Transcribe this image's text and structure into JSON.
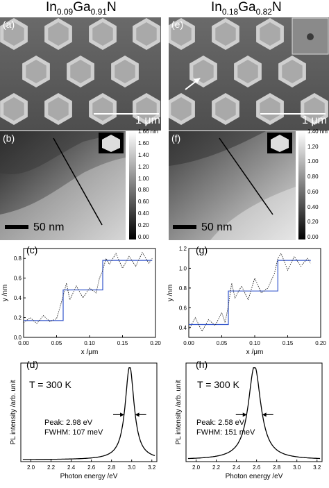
{
  "columns": [
    {
      "title_main": "In",
      "title_sub1": "0.09",
      "title_mid": "Ga",
      "title_sub2": "0.91",
      "title_end": "N"
    },
    {
      "title_main": "In",
      "title_sub1": "0.18",
      "title_mid": "Ga",
      "title_sub2": "0.82",
      "title_end": "N"
    }
  ],
  "panels": {
    "a": {
      "label": "(a)",
      "scale": "1 μm"
    },
    "b": {
      "label": "(b)",
      "scale": "50 nm",
      "colorbar_ticks": [
        "1.66 nm",
        "1.60",
        "1.40",
        "1.20",
        "1.00",
        "0.80",
        "0.60",
        "0.40",
        "0.20",
        "0.00"
      ]
    },
    "c": {
      "label": "(c)"
    },
    "d": {
      "label": "(d)",
      "temp": "T = 300 K",
      "peak": "Peak: 2.98 eV",
      "fwhm": "FWHM: 107 meV"
    },
    "e": {
      "label": "(e)",
      "scale": "1 μm"
    },
    "f": {
      "label": "(f)",
      "scale": "50 nm",
      "colorbar_ticks": [
        "1.40 nm",
        "1.20",
        "1.00",
        "0.80",
        "0.60",
        "0.40",
        "0.20",
        "0.00"
      ]
    },
    "g": {
      "label": "(g)"
    },
    "h": {
      "label": "(h)",
      "temp": "T = 300 K",
      "peak": "Peak: 2.58 eV",
      "fwhm": "FWHM: 151 meV"
    }
  },
  "chart_data": [
    {
      "id": "c",
      "type": "line",
      "xlabel": "x /μm",
      "ylabel": "y /nm",
      "xlim": [
        0,
        0.2
      ],
      "ylim": [
        0,
        0.9
      ],
      "xticks": [
        "0.00",
        "0.05",
        "0.10",
        "0.15",
        "0.20"
      ],
      "yticks": [
        "0.0",
        "0.2",
        "0.4",
        "0.6",
        "0.8"
      ],
      "series": [
        {
          "style": "step",
          "x": [
            0.0,
            0.06,
            0.06,
            0.12,
            0.12,
            0.195
          ],
          "y": [
            0.17,
            0.17,
            0.48,
            0.48,
            0.78,
            0.78
          ]
        },
        {
          "style": "dotted",
          "x": [
            0.0,
            0.01,
            0.02,
            0.03,
            0.04,
            0.05,
            0.055,
            0.06,
            0.065,
            0.07,
            0.08,
            0.09,
            0.1,
            0.11,
            0.115,
            0.12,
            0.125,
            0.13,
            0.14,
            0.15,
            0.16,
            0.17,
            0.18,
            0.19,
            0.195
          ],
          "y": [
            0.15,
            0.2,
            0.14,
            0.22,
            0.16,
            0.19,
            0.3,
            0.42,
            0.55,
            0.38,
            0.52,
            0.4,
            0.5,
            0.45,
            0.6,
            0.68,
            0.8,
            0.74,
            0.85,
            0.7,
            0.82,
            0.72,
            0.86,
            0.75,
            0.8
          ]
        }
      ]
    },
    {
      "id": "g",
      "type": "line",
      "xlabel": "x /μm",
      "ylabel": "y /nm",
      "xlim": [
        0,
        0.2
      ],
      "ylim": [
        0.3,
        1.2
      ],
      "xticks": [
        "0.00",
        "0.05",
        "0.10",
        "0.15",
        "0.20"
      ],
      "yticks": [
        "0.4",
        "0.6",
        "0.8",
        "1.0",
        "1.2"
      ],
      "series": [
        {
          "style": "step",
          "x": [
            0.0,
            0.06,
            0.06,
            0.135,
            0.135,
            0.185
          ],
          "y": [
            0.43,
            0.43,
            0.77,
            0.77,
            1.08,
            1.08
          ]
        },
        {
          "style": "dotted",
          "x": [
            0.0,
            0.01,
            0.02,
            0.03,
            0.04,
            0.05,
            0.055,
            0.06,
            0.065,
            0.07,
            0.08,
            0.09,
            0.1,
            0.11,
            0.12,
            0.13,
            0.135,
            0.14,
            0.15,
            0.16,
            0.17,
            0.18,
            0.185
          ],
          "y": [
            0.38,
            0.5,
            0.36,
            0.48,
            0.42,
            0.55,
            0.45,
            0.62,
            0.85,
            0.7,
            0.82,
            0.68,
            0.9,
            0.75,
            0.8,
            0.95,
            1.1,
            1.15,
            0.98,
            1.12,
            1.02,
            1.1,
            1.05
          ]
        }
      ]
    },
    {
      "id": "d",
      "type": "line",
      "xlabel": "Photon energy /eV",
      "ylabel": "PL intensity /arb. unit",
      "xlim": [
        1.9,
        3.25
      ],
      "ylim": [
        0,
        1.05
      ],
      "xticks": [
        "2.0",
        "2.2",
        "2.4",
        "2.6",
        "2.8",
        "3.0",
        "3.2"
      ],
      "center": 2.98,
      "width": 0.107
    },
    {
      "id": "h",
      "type": "line",
      "xlabel": "Photon energy /eV",
      "ylabel": "PL intensity /arb. unit",
      "xlim": [
        1.9,
        3.25
      ],
      "ylim": [
        0,
        1.05
      ],
      "xticks": [
        "2.0",
        "2.2",
        "2.4",
        "2.6",
        "2.8",
        "3.0",
        "3.2"
      ],
      "center": 2.58,
      "width": 0.151
    }
  ]
}
